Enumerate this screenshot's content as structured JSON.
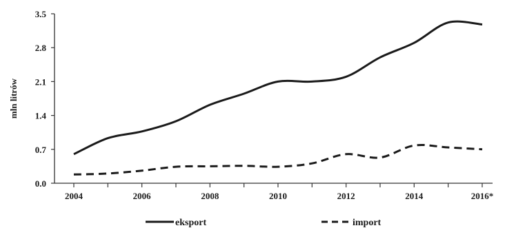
{
  "chart_data": {
    "type": "line",
    "title": "",
    "xlabel": "",
    "ylabel": "mln litrów",
    "ylim": [
      0,
      3.5
    ],
    "yticks": [
      "0.0",
      "0.7",
      "1.4",
      "2.1",
      "2.8",
      "3.5"
    ],
    "xticks": [
      "2004",
      "2006",
      "2008",
      "2010",
      "2012",
      "2014",
      "2016*"
    ],
    "x": [
      2004,
      2005,
      2006,
      2007,
      2008,
      2009,
      2010,
      2011,
      2012,
      2013,
      2014,
      2015,
      2016
    ],
    "grid": false,
    "legend_position": "bottom",
    "series": [
      {
        "name": "eksport",
        "style": "solid",
        "color": "#1a1a1a",
        "values": [
          0.6,
          0.93,
          1.07,
          1.28,
          1.62,
          1.85,
          2.1,
          2.1,
          2.2,
          2.6,
          2.9,
          3.32,
          3.28
        ]
      },
      {
        "name": "import",
        "style": "dashed",
        "color": "#1a1a1a",
        "values": [
          0.18,
          0.2,
          0.26,
          0.34,
          0.35,
          0.36,
          0.34,
          0.41,
          0.6,
          0.53,
          0.78,
          0.74,
          0.7
        ]
      }
    ]
  }
}
